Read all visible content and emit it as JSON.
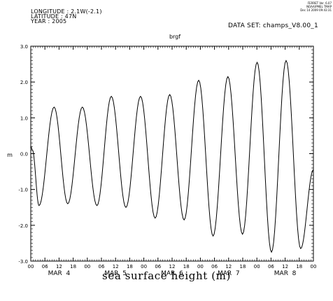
{
  "header": {
    "longitude": "LONGITUDE : 2.1W(-2.1)",
    "latitude": "LATITUDE : 47N",
    "year": "YEAR : 2005",
    "dataset": "DATA SET: champs_V8.00_1",
    "ferret_line1": "FERRET Ver. 6.07",
    "ferret_line2": "NOAA/PMEL TMAP",
    "ferret_line3": "Dec 14 2009 09:43:31"
  },
  "caption": "sea surface height (m)",
  "chart_data": {
    "type": "line",
    "title": "brgf",
    "xlabel": "",
    "ylabel": "m",
    "ylim": [
      -3.0,
      3.0
    ],
    "y_ticks": [
      "3.0",
      "2.0",
      "1.0",
      "0.0",
      "-1.0",
      "-2.0",
      "-3.0"
    ],
    "x_hour_ticks": [
      "00",
      "06",
      "12",
      "18",
      "00",
      "06",
      "12",
      "18",
      "00",
      "06",
      "12",
      "18",
      "00",
      "06",
      "12",
      "18",
      "00",
      "06",
      "12",
      "18",
      "00"
    ],
    "x_day_labels": [
      "MAR  4",
      "MAR  5",
      "MAR  6",
      "MAR  7",
      "MAR  8"
    ],
    "xlim_hours": [
      0,
      120
    ],
    "grid": false,
    "series": [
      {
        "values": [
          {
            "x": 0,
            "y": 0.2
          },
          {
            "x": 0.7,
            "y": 0.1
          },
          {
            "x": 3.5,
            "y": -1.45
          },
          {
            "x": 9.9,
            "y": 1.3
          },
          {
            "x": 15.7,
            "y": -1.4
          },
          {
            "x": 21.9,
            "y": 1.3
          },
          {
            "x": 28.1,
            "y": -1.45
          },
          {
            "x": 34.2,
            "y": 1.6
          },
          {
            "x": 40.4,
            "y": -1.5
          },
          {
            "x": 46.6,
            "y": 1.6
          },
          {
            "x": 52.8,
            "y": -1.8
          },
          {
            "x": 59.0,
            "y": 1.65
          },
          {
            "x": 65.1,
            "y": -1.85
          },
          {
            "x": 71.3,
            "y": 2.05
          },
          {
            "x": 77.4,
            "y": -2.3
          },
          {
            "x": 83.7,
            "y": 2.15
          },
          {
            "x": 89.9,
            "y": -2.25
          },
          {
            "x": 96.1,
            "y": 2.55
          },
          {
            "x": 102.2,
            "y": -2.75
          },
          {
            "x": 108.4,
            "y": 2.6
          },
          {
            "x": 114.6,
            "y": -2.65
          },
          {
            "x": 120,
            "y": -0.45
          }
        ]
      }
    ]
  }
}
